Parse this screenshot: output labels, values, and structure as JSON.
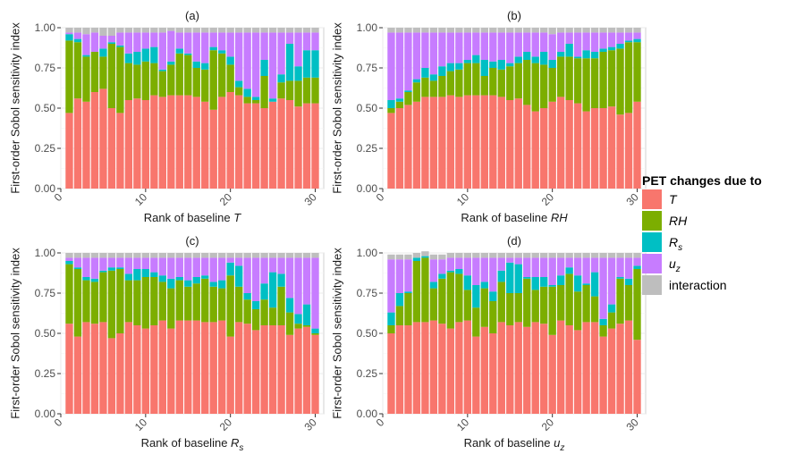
{
  "chart_data": [
    {
      "type": "bar",
      "stacked": true,
      "title": "(a)",
      "xlabel_prefix": "Rank of baseline ",
      "xlabel_var": "T",
      "xlabel_sub": "",
      "ylabel": "First-order Sobol sensitivity index",
      "xlim": [
        0,
        31
      ],
      "ylim": [
        0,
        1.0
      ],
      "xticks": [
        "0",
        "10",
        "20",
        "30"
      ],
      "yticks": [
        "0.00",
        "0.25",
        "0.50",
        "0.75",
        "1.00"
      ],
      "grid": true,
      "x": [
        1,
        2,
        3,
        4,
        5,
        6,
        7,
        8,
        9,
        10,
        11,
        12,
        13,
        14,
        15,
        16,
        17,
        18,
        19,
        20,
        21,
        22,
        23,
        24,
        25,
        26,
        27,
        28,
        29,
        30
      ],
      "series": [
        {
          "key": "T",
          "values": [
            0.47,
            0.56,
            0.54,
            0.6,
            0.62,
            0.5,
            0.47,
            0.55,
            0.56,
            0.55,
            0.58,
            0.57,
            0.58,
            0.58,
            0.58,
            0.57,
            0.54,
            0.49,
            0.57,
            0.6,
            0.58,
            0.53,
            0.53,
            0.5,
            0.54,
            0.56,
            0.55,
            0.51,
            0.53,
            0.53
          ]
        },
        {
          "key": "RH",
          "values": [
            0.45,
            0.35,
            0.28,
            0.25,
            0.2,
            0.4,
            0.41,
            0.23,
            0.21,
            0.24,
            0.2,
            0.16,
            0.19,
            0.26,
            0.25,
            0.18,
            0.2,
            0.37,
            0.27,
            0.17,
            0.05,
            0.04,
            0.02,
            0.2,
            0.0,
            0.1,
            0.12,
            0.16,
            0.16,
            0.16
          ]
        },
        {
          "key": "Rs",
          "values": [
            0.04,
            0.02,
            0.01,
            0.0,
            0.05,
            0.01,
            0.01,
            0.06,
            0.08,
            0.08,
            0.1,
            0.01,
            0.02,
            0.03,
            0.01,
            0.04,
            0.04,
            0.02,
            0.02,
            0.05,
            0.04,
            0.05,
            0.02,
            0.1,
            0.02,
            0.05,
            0.23,
            0.09,
            0.17,
            0.17
          ]
        },
        {
          "key": "uz",
          "values": [
            0.01,
            0.04,
            0.13,
            0.12,
            0.08,
            0.04,
            0.08,
            0.13,
            0.12,
            0.1,
            0.09,
            0.23,
            0.19,
            0.1,
            0.13,
            0.18,
            0.19,
            0.09,
            0.11,
            0.15,
            0.3,
            0.35,
            0.4,
            0.17,
            0.41,
            0.26,
            0.07,
            0.21,
            0.11,
            0.11
          ]
        },
        {
          "key": "interaction",
          "values": [
            0.03,
            0.03,
            0.04,
            0.03,
            0.05,
            0.05,
            0.03,
            0.03,
            0.03,
            0.03,
            0.03,
            0.03,
            0.02,
            0.03,
            0.03,
            0.03,
            0.03,
            0.03,
            0.03,
            0.03,
            0.03,
            0.03,
            0.03,
            0.03,
            0.03,
            0.03,
            0.03,
            0.03,
            0.03,
            0.03
          ]
        }
      ]
    },
    {
      "type": "bar",
      "stacked": true,
      "title": "(b)",
      "xlabel_prefix": "Rank of baseline ",
      "xlabel_var": "RH",
      "xlabel_sub": "",
      "ylabel": "First-order Sobol sensitivity index",
      "xlim": [
        0,
        31
      ],
      "ylim": [
        0,
        1.0
      ],
      "xticks": [
        "0",
        "10",
        "20",
        "30"
      ],
      "yticks": [
        "0.00",
        "0.25",
        "0.50",
        "0.75",
        "1.00"
      ],
      "grid": true,
      "x": [
        1,
        2,
        3,
        4,
        5,
        6,
        7,
        8,
        9,
        10,
        11,
        12,
        13,
        14,
        15,
        16,
        17,
        18,
        19,
        20,
        21,
        22,
        23,
        24,
        25,
        26,
        27,
        28,
        29,
        30
      ],
      "series": [
        {
          "key": "T",
          "values": [
            0.47,
            0.5,
            0.52,
            0.54,
            0.57,
            0.57,
            0.57,
            0.58,
            0.57,
            0.58,
            0.58,
            0.58,
            0.58,
            0.57,
            0.55,
            0.56,
            0.52,
            0.48,
            0.5,
            0.54,
            0.57,
            0.55,
            0.53,
            0.48,
            0.5,
            0.5,
            0.51,
            0.46,
            0.47,
            0.54
          ]
        },
        {
          "key": "RH",
          "values": [
            0.03,
            0.04,
            0.08,
            0.12,
            0.12,
            0.1,
            0.13,
            0.15,
            0.17,
            0.2,
            0.2,
            0.12,
            0.17,
            0.17,
            0.21,
            0.22,
            0.28,
            0.3,
            0.27,
            0.21,
            0.25,
            0.27,
            0.28,
            0.33,
            0.31,
            0.35,
            0.35,
            0.41,
            0.44,
            0.37
          ]
        },
        {
          "key": "Rs",
          "values": [
            0.05,
            0.02,
            0.01,
            0.02,
            0.06,
            0.04,
            0.06,
            0.05,
            0.04,
            0.02,
            0.05,
            0.1,
            0.04,
            0.06,
            0.02,
            0.04,
            0.05,
            0.04,
            0.08,
            0.05,
            0.03,
            0.08,
            0.01,
            0.05,
            0.04,
            0.02,
            0.02,
            0.03,
            0.01,
            0.02
          ]
        },
        {
          "key": "uz",
          "values": [
            0.42,
            0.41,
            0.36,
            0.29,
            0.22,
            0.26,
            0.21,
            0.19,
            0.19,
            0.17,
            0.14,
            0.17,
            0.18,
            0.17,
            0.19,
            0.15,
            0.12,
            0.15,
            0.12,
            0.16,
            0.12,
            0.07,
            0.15,
            0.11,
            0.12,
            0.1,
            0.09,
            0.07,
            0.05,
            0.04
          ]
        },
        {
          "key": "interaction",
          "values": [
            0.03,
            0.03,
            0.03,
            0.03,
            0.03,
            0.03,
            0.03,
            0.03,
            0.03,
            0.03,
            0.03,
            0.03,
            0.03,
            0.03,
            0.03,
            0.03,
            0.03,
            0.03,
            0.03,
            0.04,
            0.03,
            0.03,
            0.03,
            0.03,
            0.03,
            0.03,
            0.03,
            0.03,
            0.03,
            0.03
          ]
        }
      ]
    },
    {
      "type": "bar",
      "stacked": true,
      "title": "(c)",
      "xlabel_prefix": "Rank of baseline ",
      "xlabel_var": "R",
      "xlabel_sub": "s",
      "ylabel": "First-order Sobol sensitivity index",
      "xlim": [
        0,
        31
      ],
      "ylim": [
        0,
        1.0
      ],
      "xticks": [
        "0",
        "10",
        "20",
        "30"
      ],
      "yticks": [
        "0.00",
        "0.25",
        "0.50",
        "0.75",
        "1.00"
      ],
      "grid": true,
      "x": [
        1,
        2,
        3,
        4,
        5,
        6,
        7,
        8,
        9,
        10,
        11,
        12,
        13,
        14,
        15,
        16,
        17,
        18,
        19,
        20,
        21,
        22,
        23,
        24,
        25,
        26,
        27,
        28,
        29,
        30
      ],
      "series": [
        {
          "key": "T",
          "values": [
            0.56,
            0.48,
            0.57,
            0.56,
            0.57,
            0.47,
            0.5,
            0.57,
            0.55,
            0.53,
            0.55,
            0.58,
            0.53,
            0.58,
            0.58,
            0.58,
            0.57,
            0.57,
            0.58,
            0.48,
            0.57,
            0.56,
            0.52,
            0.55,
            0.55,
            0.55,
            0.49,
            0.53,
            0.54,
            0.49
          ]
        },
        {
          "key": "RH",
          "values": [
            0.37,
            0.42,
            0.26,
            0.26,
            0.31,
            0.42,
            0.4,
            0.26,
            0.28,
            0.32,
            0.3,
            0.24,
            0.25,
            0.25,
            0.21,
            0.23,
            0.27,
            0.22,
            0.2,
            0.38,
            0.22,
            0.15,
            0.13,
            0.16,
            0.11,
            0.24,
            0.14,
            0.03,
            0.01,
            0.01
          ]
        },
        {
          "key": "Rs",
          "values": [
            0.02,
            0.01,
            0.02,
            0.02,
            0.01,
            0.02,
            0.01,
            0.04,
            0.07,
            0.05,
            0.03,
            0.04,
            0.06,
            0.02,
            0.04,
            0.04,
            0.02,
            0.03,
            0.05,
            0.08,
            0.13,
            0.04,
            0.05,
            0.1,
            0.22,
            0.08,
            0.09,
            0.06,
            0.13,
            0.03
          ]
        },
        {
          "key": "uz",
          "values": [
            0.02,
            0.06,
            0.12,
            0.13,
            0.08,
            0.06,
            0.06,
            0.1,
            0.07,
            0.07,
            0.09,
            0.11,
            0.13,
            0.12,
            0.14,
            0.12,
            0.11,
            0.15,
            0.14,
            0.03,
            0.05,
            0.22,
            0.27,
            0.16,
            0.09,
            0.1,
            0.25,
            0.35,
            0.29,
            0.44
          ]
        },
        {
          "key": "interaction",
          "values": [
            0.03,
            0.03,
            0.03,
            0.03,
            0.03,
            0.03,
            0.03,
            0.03,
            0.03,
            0.03,
            0.03,
            0.03,
            0.03,
            0.03,
            0.03,
            0.03,
            0.03,
            0.03,
            0.03,
            0.03,
            0.03,
            0.03,
            0.03,
            0.03,
            0.03,
            0.03,
            0.03,
            0.03,
            0.03,
            0.03
          ]
        }
      ]
    },
    {
      "type": "bar",
      "stacked": true,
      "title": "(d)",
      "xlabel_prefix": "Rank of baseline ",
      "xlabel_var": "u",
      "xlabel_sub": "z",
      "ylabel": "First-order Sobol sensitivity index",
      "xlim": [
        0,
        31
      ],
      "ylim": [
        0,
        1.0
      ],
      "xticks": [
        "0",
        "10",
        "20",
        "30"
      ],
      "yticks": [
        "0.00",
        "0.25",
        "0.50",
        "0.75",
        "1.00"
      ],
      "grid": true,
      "x": [
        1,
        2,
        3,
        4,
        5,
        6,
        7,
        8,
        9,
        10,
        11,
        12,
        13,
        14,
        15,
        16,
        17,
        18,
        19,
        20,
        21,
        22,
        23,
        24,
        25,
        26,
        27,
        28,
        29,
        30
      ],
      "series": [
        {
          "key": "T",
          "values": [
            0.5,
            0.55,
            0.55,
            0.57,
            0.57,
            0.58,
            0.56,
            0.53,
            0.57,
            0.58,
            0.48,
            0.54,
            0.5,
            0.57,
            0.55,
            0.57,
            0.54,
            0.57,
            0.56,
            0.49,
            0.58,
            0.55,
            0.52,
            0.57,
            0.57,
            0.48,
            0.53,
            0.56,
            0.58,
            0.46
          ]
        },
        {
          "key": "RH",
          "values": [
            0.05,
            0.12,
            0.2,
            0.38,
            0.4,
            0.2,
            0.28,
            0.35,
            0.3,
            0.19,
            0.18,
            0.24,
            0.2,
            0.25,
            0.2,
            0.18,
            0.3,
            0.2,
            0.23,
            0.3,
            0.22,
            0.32,
            0.24,
            0.23,
            0.16,
            0.07,
            0.1,
            0.28,
            0.22,
            0.44
          ]
        },
        {
          "key": "Rs",
          "values": [
            0.08,
            0.08,
            0.01,
            0.02,
            0.01,
            0.04,
            0.03,
            0.01,
            0.03,
            0.09,
            0.14,
            0.04,
            0.06,
            0.07,
            0.19,
            0.18,
            0.01,
            0.08,
            0.06,
            0.01,
            0.06,
            0.04,
            0.1,
            0.01,
            0.15,
            0.04,
            0.05,
            0.01,
            0.04,
            0.02
          ]
        },
        {
          "key": "uz",
          "values": [
            0.33,
            0.21,
            0.2,
            0.0,
            0.0,
            0.14,
            0.09,
            0.08,
            0.07,
            0.11,
            0.17,
            0.15,
            0.21,
            0.08,
            0.03,
            0.04,
            0.12,
            0.12,
            0.12,
            0.17,
            0.11,
            0.06,
            0.11,
            0.16,
            0.09,
            0.38,
            0.29,
            0.12,
            0.13,
            0.05
          ]
        },
        {
          "key": "interaction",
          "values": [
            0.03,
            0.03,
            0.03,
            0.03,
            0.03,
            0.03,
            0.03,
            0.03,
            0.03,
            0.03,
            0.03,
            0.03,
            0.03,
            0.03,
            0.03,
            0.03,
            0.03,
            0.03,
            0.03,
            0.03,
            0.03,
            0.03,
            0.03,
            0.03,
            0.03,
            0.03,
            0.03,
            0.03,
            0.03,
            0.03
          ]
        }
      ]
    }
  ],
  "legend": {
    "title": "PET changes due to",
    "placement": "right",
    "items": [
      {
        "key": "T",
        "label": "T",
        "sub": "",
        "italic": true,
        "color": "#f8766d"
      },
      {
        "key": "RH",
        "label": "RH",
        "sub": "",
        "italic": true,
        "color": "#7cae00"
      },
      {
        "key": "Rs",
        "label": "R",
        "sub": "s",
        "italic": true,
        "color": "#00bfc4"
      },
      {
        "key": "uz",
        "label": "u",
        "sub": "z",
        "italic": true,
        "color": "#c77cff"
      },
      {
        "key": "interaction",
        "label": "interaction",
        "sub": "",
        "italic": false,
        "color": "#bebebe"
      }
    ]
  }
}
